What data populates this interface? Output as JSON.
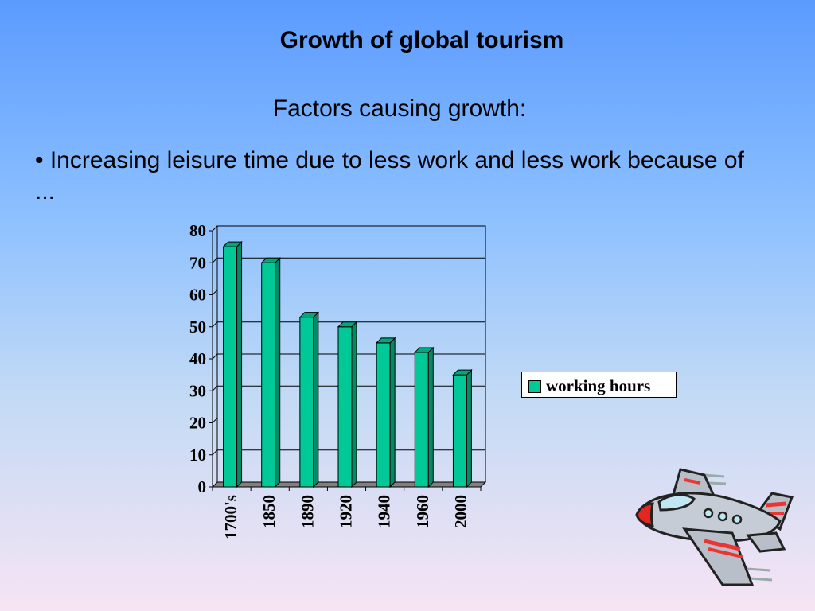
{
  "slide": {
    "title": "Growth of global tourism",
    "subtitle": "Factors causing growth:",
    "bullet": "• Increasing leisure time due to less work and less work because of ..."
  },
  "chart_data": {
    "type": "bar",
    "categories": [
      "1700's",
      "1850",
      "1890",
      "1920",
      "1940",
      "1960",
      "2000"
    ],
    "series": [
      {
        "name": "working hours",
        "values": [
          75,
          70,
          53,
          50,
          45,
          42,
          35
        ]
      }
    ],
    "title": "",
    "xlabel": "",
    "ylabel": "",
    "ylim": [
      0,
      80
    ],
    "yticks": [
      0,
      10,
      20,
      30,
      40,
      50,
      60,
      70,
      80
    ],
    "grid": true,
    "legend_position": "right",
    "bar_color": "#00c896",
    "style": "3d"
  },
  "decoration": {
    "icon": "airplane-clipart-icon"
  }
}
